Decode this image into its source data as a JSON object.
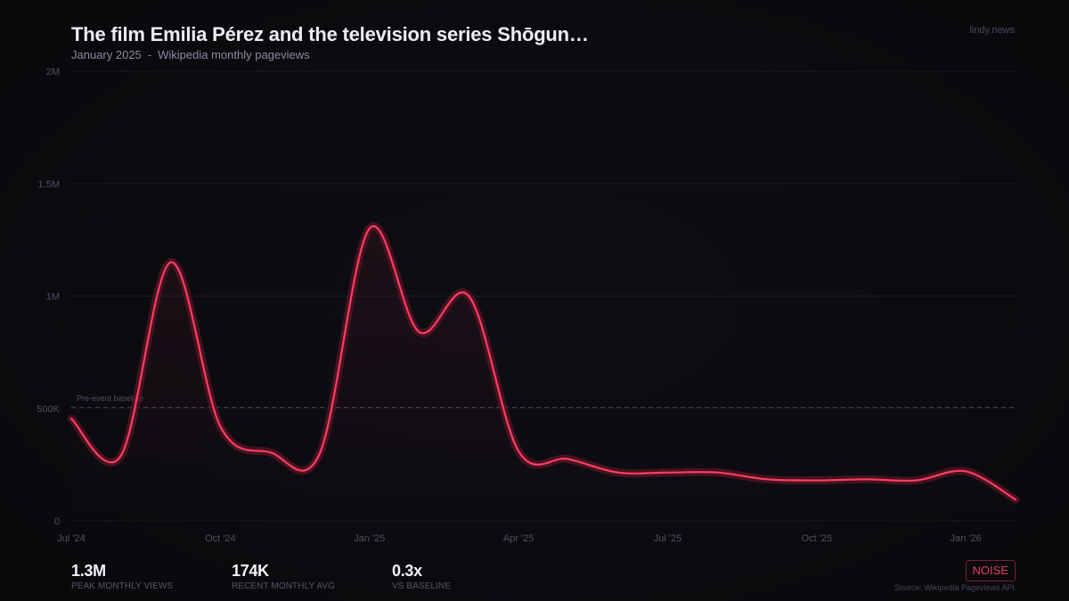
{
  "header": {
    "title": "The film Emilia Pérez and the television series Shōgun…",
    "date": "January 2025",
    "separator": "-",
    "metric": "Wikipedia monthly pageviews"
  },
  "brand": "lindy.news",
  "stats": [
    {
      "value": "1.3M",
      "label": "PEAK MONTHLY VIEWS"
    },
    {
      "value": "174K",
      "label": "RECENT MONTHLY AVG"
    },
    {
      "value": "0.3x",
      "label": "VS BASELINE"
    }
  ],
  "badge": {
    "label": "NOISE",
    "color": "#e0405e"
  },
  "source": "Source: Wikipedia Pageviews API",
  "colors": {
    "background": "#0b0b0f",
    "line": "#ff3d63",
    "glow": "#5a1426",
    "grid": "#1a1a24",
    "baseline": "#3a3a4e",
    "axis_text": "#4f4f66"
  },
  "chart_data": {
    "type": "line",
    "title": "The film Emilia Pérez and the television series Shōgun…",
    "subtitle": "January 2025 - Wikipedia monthly pageviews",
    "xlabel": "",
    "ylabel": "",
    "ylim": [
      0,
      2000000
    ],
    "grid": true,
    "legend": null,
    "y_ticks": [
      {
        "value": 0,
        "label": "0"
      },
      {
        "value": 500000,
        "label": "500K"
      },
      {
        "value": 1000000,
        "label": "1M"
      },
      {
        "value": 1500000,
        "label": "1.5M"
      },
      {
        "value": 2000000,
        "label": "2M"
      }
    ],
    "x_ticks": [
      {
        "index": 0,
        "label": "Jul '24"
      },
      {
        "index": 3,
        "label": "Oct '24"
      },
      {
        "index": 6,
        "label": "Jan '25"
      },
      {
        "index": 9,
        "label": "Apr '25"
      },
      {
        "index": 12,
        "label": "Jul '25"
      },
      {
        "index": 15,
        "label": "Oct '25"
      },
      {
        "index": 18,
        "label": "Jan '26"
      }
    ],
    "x": [
      "Jul '24",
      "Aug '24",
      "Sep '24",
      "Oct '24",
      "Nov '24",
      "Dec '24",
      "Jan '25",
      "Feb '25",
      "Mar '25",
      "Apr '25",
      "May '25",
      "Jun '25",
      "Jul '25",
      "Aug '25",
      "Sep '25",
      "Oct '25",
      "Nov '25",
      "Dec '25",
      "Jan '26",
      "Feb '26"
    ],
    "series": [
      {
        "name": "Monthly pageviews",
        "values": [
          455000,
          290000,
          1150000,
          420000,
          305000,
          300000,
          1300000,
          840000,
          1000000,
          310000,
          275000,
          215000,
          215000,
          215000,
          185000,
          180000,
          185000,
          180000,
          220000,
          95000
        ]
      }
    ],
    "annotations": [
      {
        "type": "hline",
        "value": 505000,
        "label": "Pre-event baseline",
        "style": "dashed"
      }
    ]
  }
}
